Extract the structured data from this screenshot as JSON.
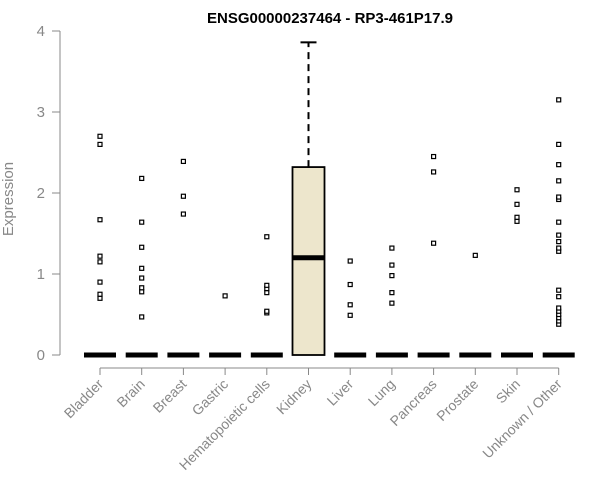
{
  "chart_data": {
    "type": "box",
    "title": "ENSG00000237464 - RP3-461P17.9",
    "xlabel": "",
    "ylabel": "Expression",
    "ylim": [
      0,
      4
    ],
    "yticks": [
      "0",
      "1",
      "2",
      "3",
      "4"
    ],
    "categories": [
      "Bladder",
      "Brain",
      "Breast",
      "Gastric",
      "Hematopoietic cells",
      "Kidney",
      "Liver",
      "Lung",
      "Pancreas",
      "Prostate",
      "Skin",
      "Unknown / Other"
    ],
    "colors": {
      "box_fill": "#ede6cc",
      "median": "#000000",
      "outline": "#000000",
      "axis": "#888888"
    },
    "boxes": [
      {
        "category": "Bladder",
        "q1": 0,
        "median": 0,
        "q3": 0,
        "whisker_low": 0,
        "whisker_high": 0,
        "outliers": [
          0.7,
          0.75,
          0.9,
          1.15,
          1.22,
          1.67,
          2.6,
          2.7
        ]
      },
      {
        "category": "Brain",
        "q1": 0,
        "median": 0,
        "q3": 0,
        "whisker_low": 0,
        "whisker_high": 0,
        "outliers": [
          0.47,
          0.78,
          0.83,
          0.95,
          1.07,
          1.33,
          1.64,
          2.18
        ]
      },
      {
        "category": "Breast",
        "q1": 0,
        "median": 0,
        "q3": 0,
        "whisker_low": 0,
        "whisker_high": 0,
        "outliers": [
          1.74,
          1.96,
          2.39
        ]
      },
      {
        "category": "Gastric",
        "q1": 0,
        "median": 0,
        "q3": 0,
        "whisker_low": 0,
        "whisker_high": 0,
        "outliers": [
          0.73
        ]
      },
      {
        "category": "Hematopoietic cells",
        "q1": 0,
        "median": 0,
        "q3": 0,
        "whisker_low": 0,
        "whisker_high": 0,
        "outliers": [
          0.52,
          0.54,
          0.77,
          0.82,
          0.86,
          1.46
        ]
      },
      {
        "category": "Kidney",
        "q1": 0,
        "median": 1.2,
        "q3": 2.32,
        "whisker_low": 0,
        "whisker_high": 3.86,
        "outliers": []
      },
      {
        "category": "Liver",
        "q1": 0,
        "median": 0,
        "q3": 0,
        "whisker_low": 0,
        "whisker_high": 0,
        "outliers": [
          0.49,
          0.62,
          0.87,
          1.16
        ]
      },
      {
        "category": "Lung",
        "q1": 0,
        "median": 0,
        "q3": 0,
        "whisker_low": 0,
        "whisker_high": 0,
        "outliers": [
          0.64,
          0.77,
          0.98,
          1.11,
          1.32
        ]
      },
      {
        "category": "Pancreas",
        "q1": 0,
        "median": 0,
        "q3": 0,
        "whisker_low": 0,
        "whisker_high": 0,
        "outliers": [
          1.38,
          2.26,
          2.45
        ]
      },
      {
        "category": "Prostate",
        "q1": 0,
        "median": 0,
        "q3": 0,
        "whisker_low": 0,
        "whisker_high": 0,
        "outliers": [
          1.23
        ]
      },
      {
        "category": "Skin",
        "q1": 0,
        "median": 0,
        "q3": 0,
        "whisker_low": 0,
        "whisker_high": 0,
        "outliers": [
          1.65,
          1.7,
          1.86,
          2.04
        ]
      },
      {
        "category": "Unknown / Other",
        "q1": 0,
        "median": 0,
        "q3": 0,
        "whisker_low": 0,
        "whisker_high": 0,
        "outliers": [
          0.38,
          0.42,
          0.46,
          0.5,
          0.54,
          0.58,
          0.72,
          0.8,
          1.28,
          1.32,
          1.4,
          1.48,
          1.64,
          1.92,
          1.95,
          2.15,
          2.35,
          2.6,
          3.15
        ]
      }
    ]
  }
}
